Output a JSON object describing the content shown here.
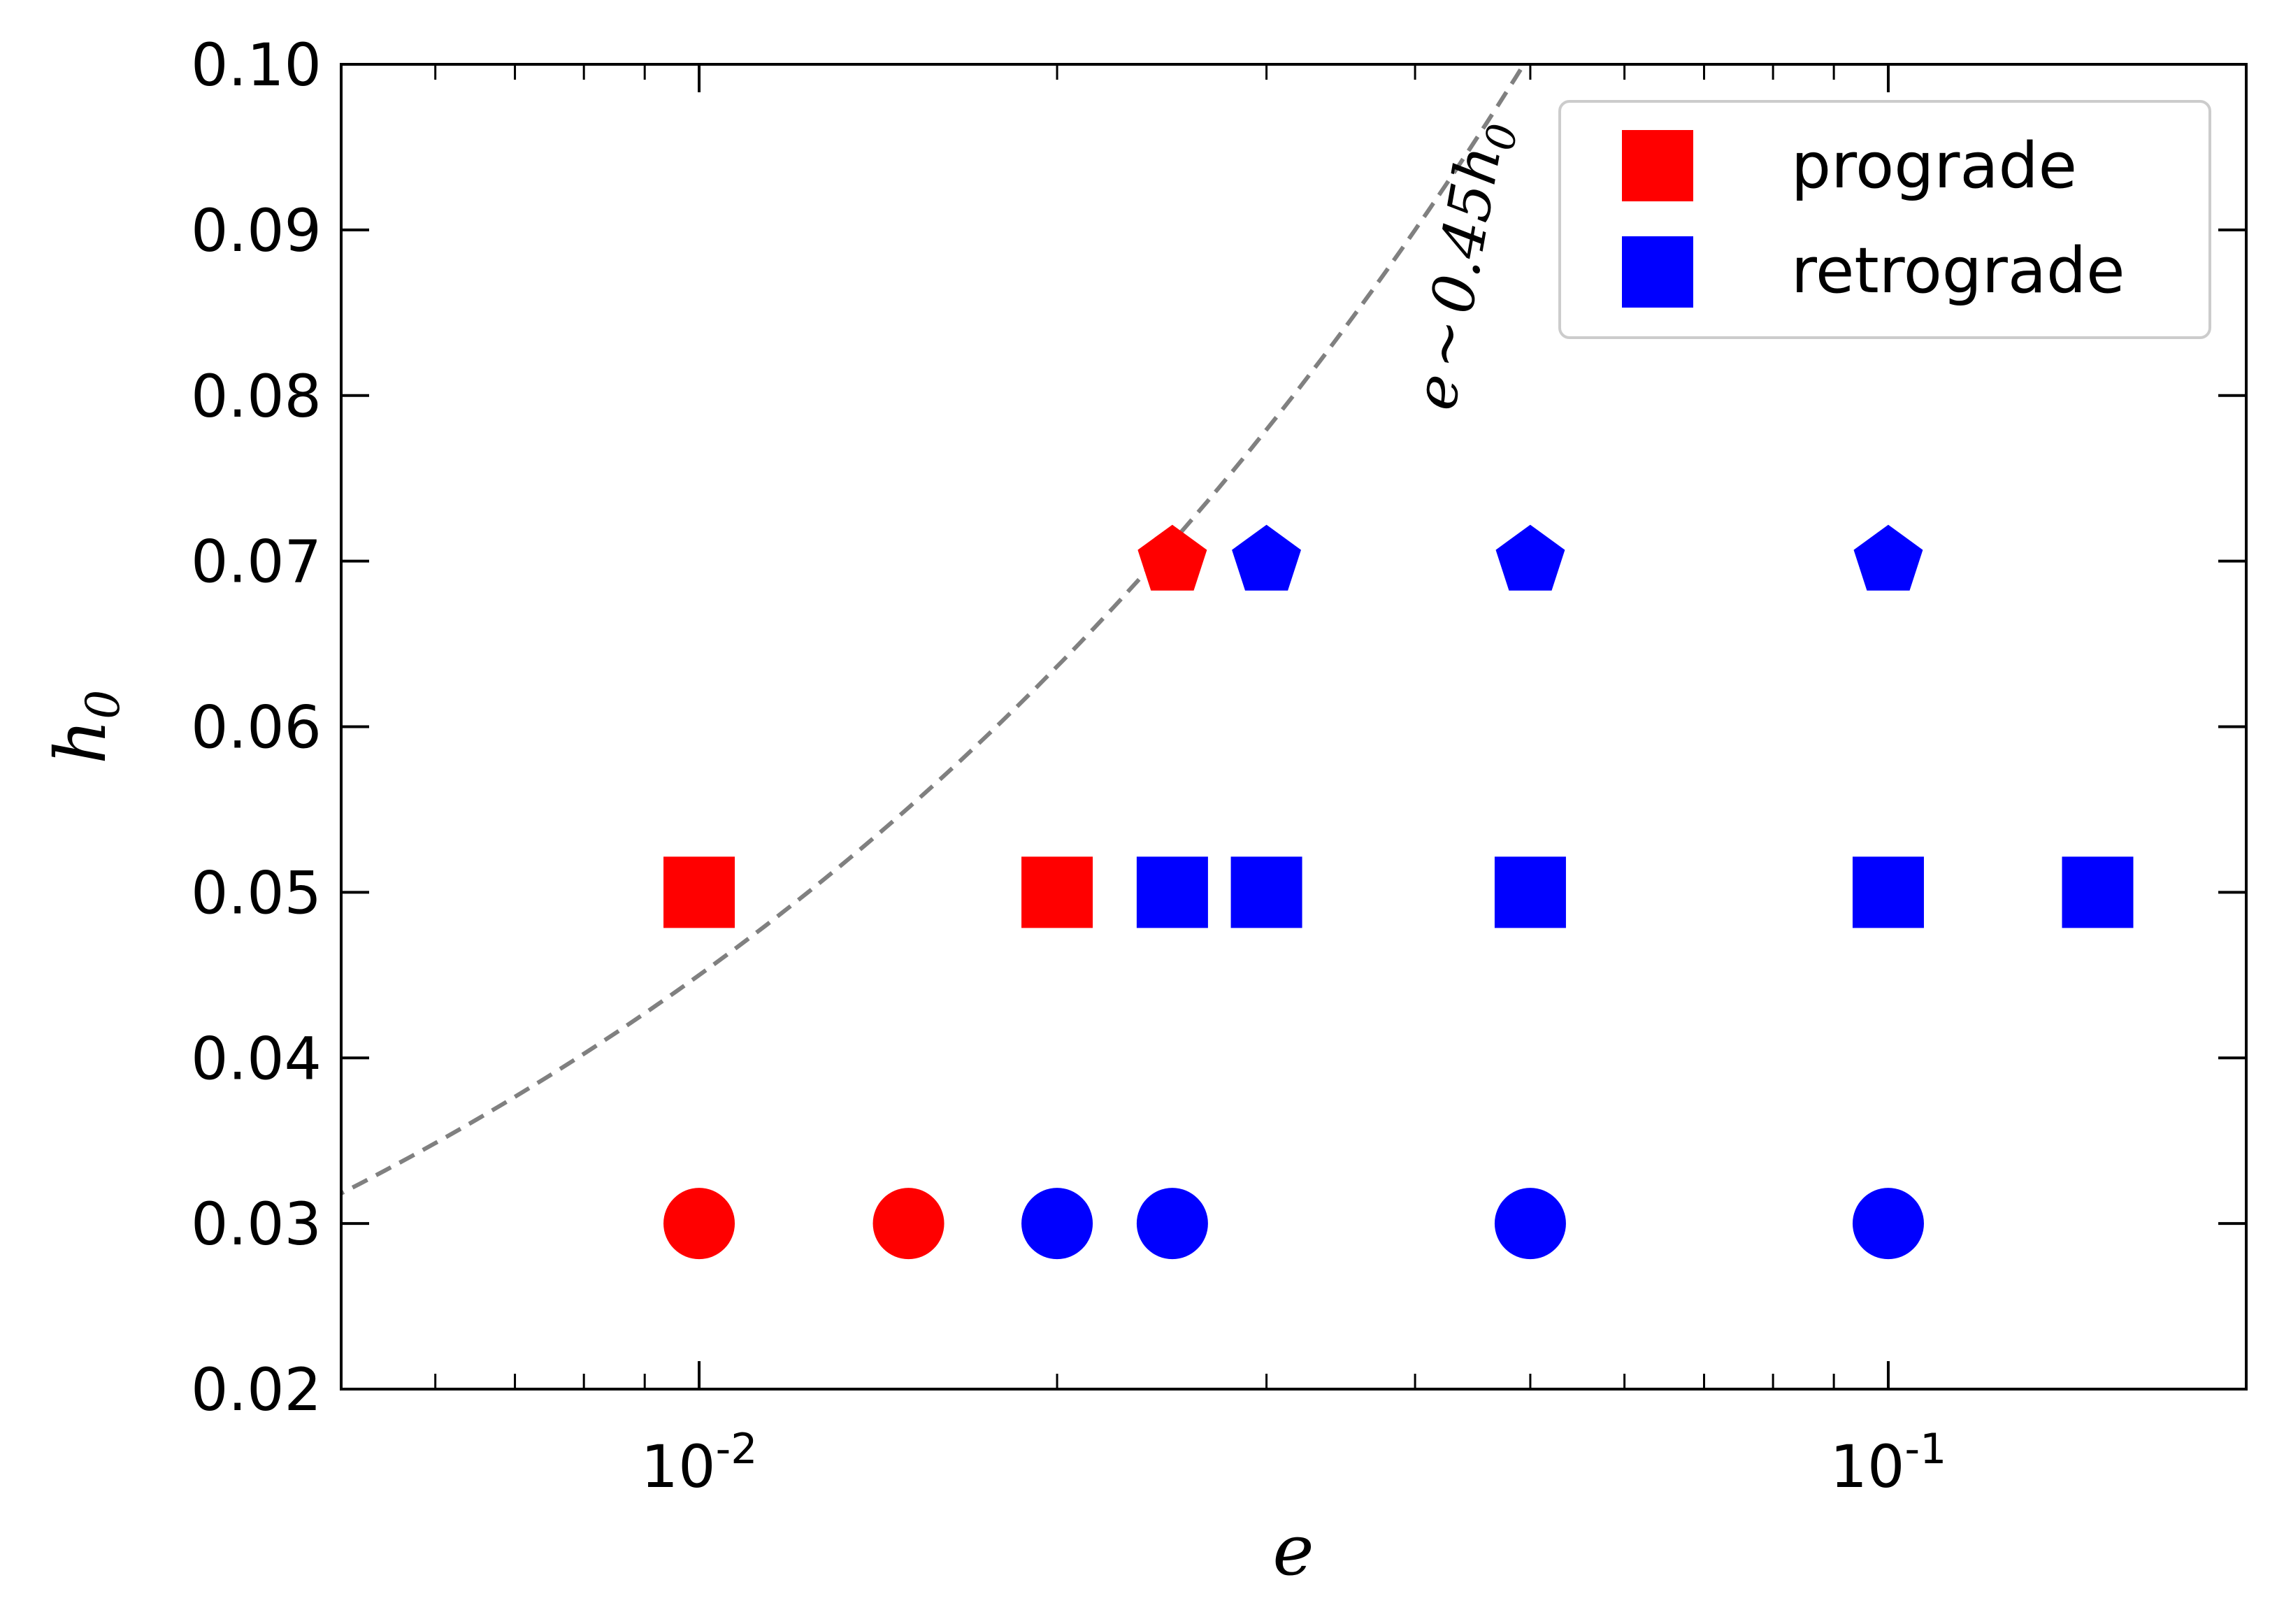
{
  "chart_data": {
    "type": "scatter",
    "title": "",
    "xlabel": "e",
    "ylabel": "h",
    "ylabel_sub": "0",
    "xscale": "log",
    "xlim": [
      0.005,
      0.2
    ],
    "ylim": [
      0.02,
      0.1
    ],
    "xticks": [
      {
        "value": 0.01,
        "base": "10",
        "exp": "-2"
      },
      {
        "value": 0.1,
        "base": "10",
        "exp": "-1"
      }
    ],
    "yticks": [
      0.02,
      0.03,
      0.04,
      0.05,
      0.06,
      0.07,
      0.08,
      0.09,
      0.1
    ],
    "ytick_labels": [
      "0.02",
      "0.03",
      "0.04",
      "0.05",
      "0.06",
      "0.07",
      "0.08",
      "0.09",
      "0.10"
    ],
    "grid": false,
    "legend": {
      "position": "top-right",
      "entries": [
        {
          "label": "prograde",
          "color": "#ff0000",
          "marker": "square"
        },
        {
          "label": "retrograde",
          "color": "#0000ff",
          "marker": "square"
        }
      ]
    },
    "series": [
      {
        "name": "prograde",
        "color": "#ff0000",
        "points": [
          {
            "x": 0.01,
            "y": 0.05,
            "marker": "square"
          },
          {
            "x": 0.02,
            "y": 0.05,
            "marker": "square"
          },
          {
            "x": 0.01,
            "y": 0.03,
            "marker": "circle"
          },
          {
            "x": 0.015,
            "y": 0.03,
            "marker": "circle"
          },
          {
            "x": 0.025,
            "y": 0.07,
            "marker": "pentagon"
          }
        ]
      },
      {
        "name": "retrograde",
        "color": "#0000ff",
        "points": [
          {
            "x": 0.025,
            "y": 0.05,
            "marker": "square"
          },
          {
            "x": 0.03,
            "y": 0.05,
            "marker": "square"
          },
          {
            "x": 0.05,
            "y": 0.05,
            "marker": "square"
          },
          {
            "x": 0.1,
            "y": 0.05,
            "marker": "square"
          },
          {
            "x": 0.15,
            "y": 0.05,
            "marker": "square"
          },
          {
            "x": 0.02,
            "y": 0.03,
            "marker": "circle"
          },
          {
            "x": 0.025,
            "y": 0.03,
            "marker": "circle"
          },
          {
            "x": 0.05,
            "y": 0.03,
            "marker": "circle"
          },
          {
            "x": 0.1,
            "y": 0.03,
            "marker": "circle"
          },
          {
            "x": 0.03,
            "y": 0.07,
            "marker": "pentagon"
          },
          {
            "x": 0.05,
            "y": 0.07,
            "marker": "pentagon"
          },
          {
            "x": 0.1,
            "y": 0.07,
            "marker": "pentagon"
          }
        ]
      }
    ],
    "reference_curve": {
      "label_left": "e",
      "label_sim": "∼",
      "label_coef": "0.45h",
      "label_sub": "0",
      "color": "#808080",
      "style": "dashed",
      "coefficient": 0.45,
      "exponent": 2
    }
  }
}
